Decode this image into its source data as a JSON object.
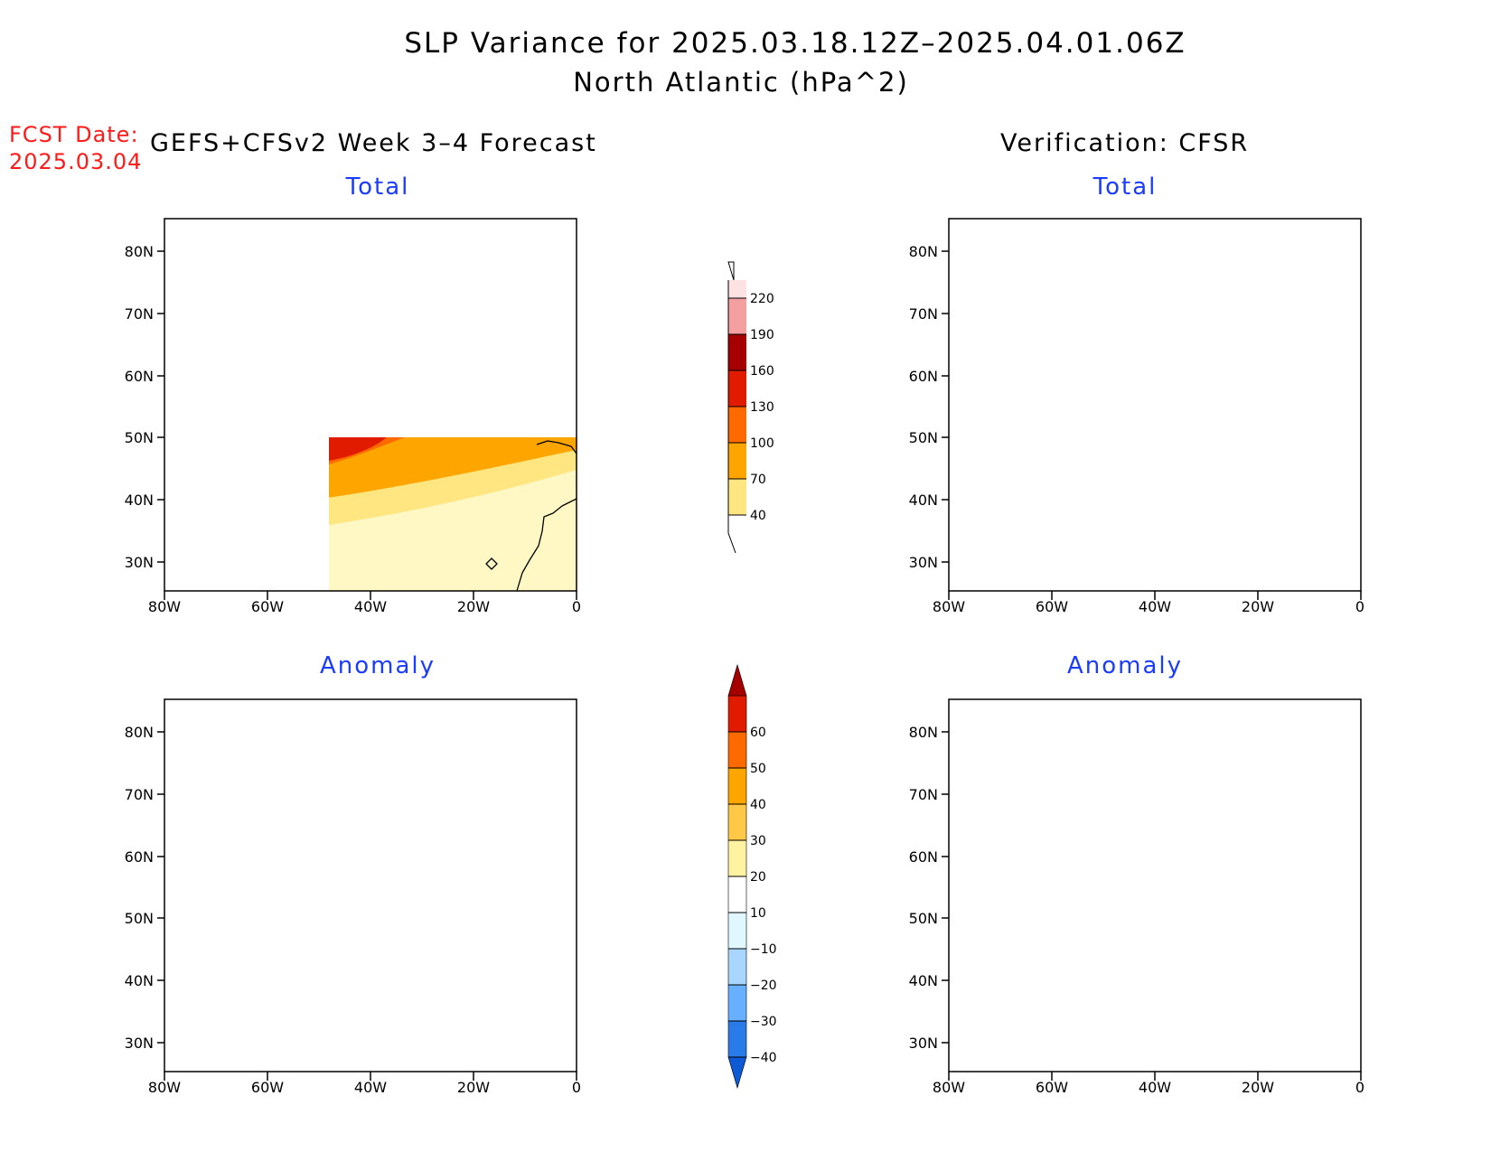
{
  "title": {
    "line1": "SLP Variance for 2025.03.18.12Z–2025.04.01.06Z",
    "line2": "North Atlantic (hPa^2)"
  },
  "forecast_date": {
    "label": "FCST Date:",
    "value": "2025.03.04"
  },
  "columns": {
    "left": "GEFS+CFSv2 Week 3–4 Forecast",
    "right": "Verification: CFSR"
  },
  "panels": {
    "top_left": "Total",
    "top_right": "Total",
    "bottom_left": "Anomaly",
    "bottom_right": "Anomaly"
  },
  "axes": {
    "x_ticks": [
      "80W",
      "60W",
      "40W",
      "20W",
      "0"
    ],
    "y_ticks": [
      "80N",
      "70N",
      "60N",
      "50N",
      "40N",
      "30N"
    ],
    "lon_range": [
      -80,
      0
    ],
    "lat_range": [
      25,
      85
    ]
  },
  "colorbars": {
    "total": {
      "ticks": [
        "40",
        "70",
        "100",
        "130",
        "160",
        "190",
        "220"
      ],
      "colors": [
        "#ffe680",
        "#ffa500",
        "#ff6a00",
        "#e01b00",
        "#a50000",
        "#f4a0a0",
        "#fde2e2"
      ]
    },
    "anomaly": {
      "ticks": [
        "−40",
        "−30",
        "−20",
        "−10",
        "10",
        "20",
        "30",
        "40",
        "50",
        "60"
      ],
      "colors": [
        "#0d5ad6",
        "#2a7ae8",
        "#66b0ff",
        "#a8d6ff",
        "#e0f7ff",
        "#ffffff",
        "#fff2a0",
        "#ffc847",
        "#ffa500",
        "#ff6a00",
        "#e01b00",
        "#a50000"
      ]
    }
  }
}
